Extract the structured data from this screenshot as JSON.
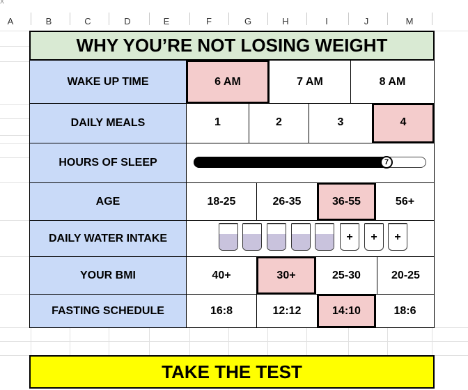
{
  "sheet": {
    "corner_mark": "x",
    "columns": [
      "A",
      "B",
      "C",
      "D",
      "E",
      "F",
      "G",
      "H",
      "I",
      "J",
      "M"
    ]
  },
  "title": "WHY YOU’RE NOT LOSING WEIGHT",
  "rows": {
    "wake_up": {
      "label": "WAKE UP TIME",
      "options": [
        "6 AM",
        "7 AM",
        "8 AM"
      ],
      "selected": "6 AM"
    },
    "daily_meals": {
      "label": "DAILY MEALS",
      "options": [
        "1",
        "2",
        "3",
        "4"
      ],
      "selected": "4"
    },
    "sleep": {
      "label": "HOURS OF SLEEP",
      "value": "7",
      "fill_fraction": 0.83
    },
    "age": {
      "label": "AGE",
      "options": [
        "18-25",
        "26-35",
        "36-55",
        "56+"
      ],
      "selected": "36-55"
    },
    "water": {
      "label": "DAILY WATER INTAKE",
      "filled_cups": 5,
      "add_cups": [
        "+",
        "+",
        "+"
      ]
    },
    "bmi": {
      "label": "YOUR BMI",
      "options": [
        "40+",
        "30+",
        "25-30",
        "20-25"
      ],
      "selected": "30+"
    },
    "fasting": {
      "label": "FASTING SCHEDULE",
      "options": [
        "16:8",
        "12:12",
        "14:10",
        "18:6"
      ],
      "selected": "14:10"
    }
  },
  "cta": {
    "label": "TAKE THE TEST"
  },
  "colors": {
    "title_bg": "#d9ead3",
    "label_bg": "#c9daf8",
    "selected_bg": "#f4cccc",
    "cta_bg": "#ffff00",
    "water": "#c9c3dd"
  }
}
